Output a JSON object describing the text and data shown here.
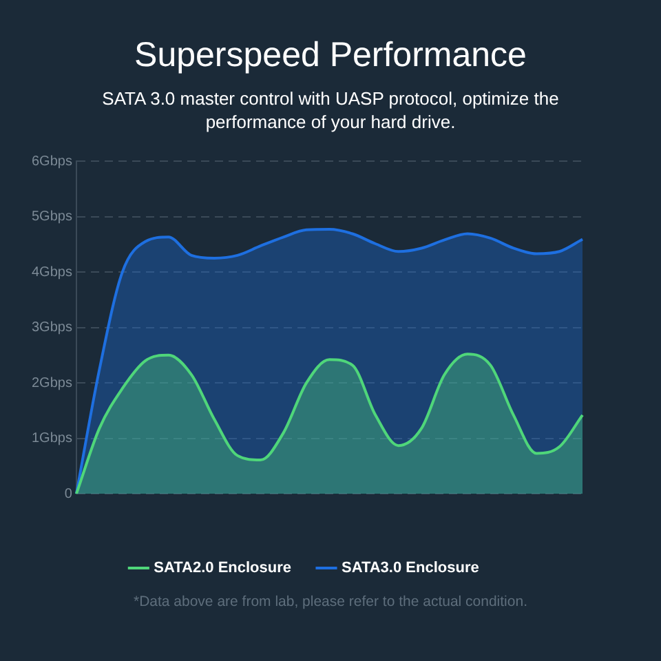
{
  "chart_data": {
    "type": "area",
    "title": "Superspeed Performance",
    "subtitle": "SATA 3.0 master control with UASP protocol, optimize the performance of your hard drive.",
    "annotations": [
      "*Data above are from lab, please refer to the actual condition."
    ],
    "categories": [
      null,
      null,
      null,
      null,
      null,
      null,
      null,
      null,
      null,
      null,
      null,
      null,
      null,
      null,
      null,
      null,
      null,
      null,
      null,
      null,
      null,
      null,
      null
    ],
    "series": [
      {
        "name": "SATA2.0 Enclosure",
        "color": "#4fd67a",
        "values": [
          0,
          1.18,
          1.9,
          2.4,
          2.5,
          2.15,
          1.34,
          0.69,
          0.61,
          1.1,
          2.0,
          2.42,
          2.32,
          1.42,
          0.87,
          1.18,
          2.15,
          2.52,
          2.32,
          1.42,
          0.73,
          0.85,
          1.42
        ]
      },
      {
        "name": "SATA3.0 Enclosure",
        "color": "#1e6fe0",
        "values": [
          0,
          2.24,
          4.0,
          4.55,
          4.63,
          4.3,
          4.25,
          4.3,
          4.47,
          4.63,
          4.76,
          4.77,
          4.69,
          4.51,
          4.37,
          4.43,
          4.58,
          4.69,
          4.61,
          4.43,
          4.33,
          4.37,
          4.59
        ]
      }
    ],
    "ylim": [
      0,
      6
    ],
    "yticks": [
      0,
      {
        "value": 1,
        "label": "1Gbps"
      },
      {
        "value": 2,
        "label": "2Gbps"
      },
      {
        "value": 3,
        "label": "3Gbps"
      },
      {
        "value": 4,
        "label": "4Gbps"
      },
      {
        "value": 5,
        "label": "5Gbps"
      },
      {
        "value": 6,
        "label": "6Gbps"
      }
    ],
    "grid": "y",
    "legend": "bottom",
    "line_style": "solid",
    "marker": "none"
  }
}
